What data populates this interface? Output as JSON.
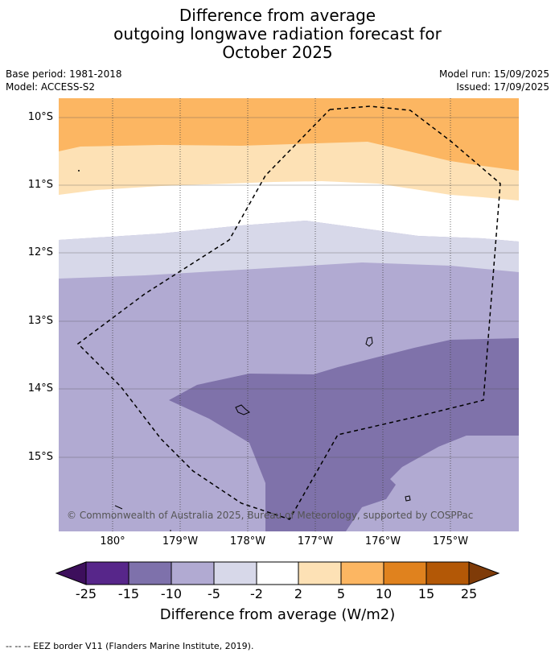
{
  "title": {
    "line1": "Difference from average",
    "line2": "outgoing longwave radiation forecast for",
    "line3": "October 2025"
  },
  "meta": {
    "base_period": "Base period: 1981-2018",
    "model": "Model: ACCESS-S2",
    "model_run": "Model run: 15/09/2025",
    "issued": "Issued: 17/09/2025"
  },
  "map": {
    "lat_labels": [
      "10°S",
      "11°S",
      "12°S",
      "13°S",
      "14°S",
      "15°S"
    ],
    "lon_labels": [
      "180°",
      "179°W",
      "178°W",
      "177°W",
      "176°W",
      "175°W"
    ],
    "copyright": "© Commonwealth of Australia 2025, Bureau of Meteorology, supported by COSPPac",
    "colors": {
      "pos_2_5": "#fde1b5",
      "pos_5_10": "#fcb662",
      "neg_5_2": "#d7d8e9",
      "neg_10_5": "#b1aad2",
      "neg_15_10": "#7f72aa",
      "eez": "#000000",
      "grid": "#444444"
    }
  },
  "colorbar": {
    "ticks": [
      "-25",
      "-15",
      "-10",
      "-5",
      "-2",
      "2",
      "5",
      "10",
      "15",
      "25"
    ],
    "colors": [
      "#3d0f5c",
      "#57268a",
      "#7e71ab",
      "#b1aad2",
      "#d7d8e9",
      "#ffffff",
      "#fde1b5",
      "#fcb662",
      "#e0821e",
      "#b35806",
      "#7f3b08"
    ],
    "label": "Difference from average (W/m2)"
  },
  "footer": "--  --  -- EEZ border V11 (Flanders Marine Institute, 2019)."
}
